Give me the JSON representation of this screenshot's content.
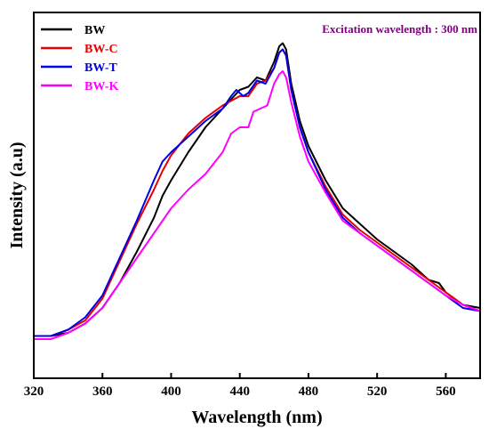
{
  "chart_data": {
    "type": "line",
    "xlabel": "Wavelength (nm)",
    "ylabel": "Intensity (a.u)",
    "xlim": [
      320,
      580
    ],
    "ylim": [
      0,
      1
    ],
    "xticks": [
      "320",
      "360",
      "400",
      "440",
      "480",
      "520",
      "560"
    ],
    "annotation": {
      "text": "Excitation wavelength : 300 nm",
      "color": "#800080"
    },
    "legend_position": "top-left",
    "series": [
      {
        "name": "BW",
        "color": "#000000",
        "x": [
          320,
          330,
          340,
          350,
          360,
          370,
          380,
          390,
          395,
          400,
          410,
          420,
          430,
          435,
          440,
          445,
          450,
          455,
          460,
          463,
          465,
          467,
          470,
          475,
          480,
          490,
          500,
          510,
          520,
          530,
          540,
          550,
          556,
          560,
          570,
          580
        ],
        "y": [
          0.07,
          0.07,
          0.08,
          0.11,
          0.16,
          0.24,
          0.34,
          0.45,
          0.52,
          0.57,
          0.66,
          0.74,
          0.8,
          0.83,
          0.86,
          0.87,
          0.9,
          0.89,
          0.95,
          1.0,
          1.01,
          0.99,
          0.88,
          0.76,
          0.68,
          0.57,
          0.48,
          0.43,
          0.38,
          0.34,
          0.3,
          0.25,
          0.24,
          0.21,
          0.17,
          0.16
        ]
      },
      {
        "name": "BW-C",
        "color": "#e60000",
        "x": [
          320,
          330,
          340,
          350,
          360,
          370,
          380,
          390,
          395,
          400,
          410,
          420,
          430,
          440,
          445,
          450,
          455,
          460,
          463,
          465,
          467,
          470,
          475,
          480,
          490,
          500,
          510,
          520,
          530,
          540,
          550,
          560,
          570,
          580
        ],
        "y": [
          0.07,
          0.07,
          0.09,
          0.12,
          0.19,
          0.31,
          0.43,
          0.54,
          0.6,
          0.65,
          0.72,
          0.77,
          0.81,
          0.84,
          0.84,
          0.88,
          0.89,
          0.93,
          0.98,
          0.99,
          0.97,
          0.86,
          0.74,
          0.66,
          0.55,
          0.46,
          0.41,
          0.37,
          0.33,
          0.29,
          0.25,
          0.21,
          0.17,
          0.15
        ]
      },
      {
        "name": "BW-T",
        "color": "#0000e6",
        "x": [
          320,
          330,
          340,
          350,
          360,
          370,
          380,
          390,
          395,
          400,
          410,
          420,
          430,
          435,
          438,
          442,
          445,
          450,
          455,
          460,
          463,
          465,
          467,
          470,
          475,
          480,
          490,
          500,
          510,
          520,
          530,
          540,
          550,
          560,
          570,
          580
        ],
        "y": [
          0.07,
          0.07,
          0.09,
          0.13,
          0.2,
          0.32,
          0.44,
          0.57,
          0.63,
          0.66,
          0.71,
          0.76,
          0.8,
          0.84,
          0.86,
          0.84,
          0.85,
          0.89,
          0.88,
          0.93,
          0.98,
          0.99,
          0.97,
          0.86,
          0.74,
          0.66,
          0.54,
          0.45,
          0.4,
          0.36,
          0.32,
          0.28,
          0.24,
          0.2,
          0.16,
          0.15
        ]
      },
      {
        "name": "BW-K",
        "color": "#ff00ff",
        "x": [
          320,
          330,
          340,
          350,
          360,
          370,
          380,
          390,
          400,
          410,
          420,
          430,
          435,
          440,
          445,
          448,
          452,
          456,
          460,
          463,
          465,
          467,
          470,
          475,
          480,
          490,
          500,
          510,
          520,
          530,
          540,
          550,
          560,
          570,
          580
        ],
        "y": [
          0.06,
          0.06,
          0.08,
          0.11,
          0.16,
          0.24,
          0.32,
          0.4,
          0.48,
          0.54,
          0.59,
          0.66,
          0.72,
          0.74,
          0.74,
          0.79,
          0.8,
          0.81,
          0.88,
          0.91,
          0.92,
          0.9,
          0.82,
          0.71,
          0.63,
          0.53,
          0.44,
          0.4,
          0.36,
          0.32,
          0.28,
          0.24,
          0.2,
          0.17,
          0.15
        ]
      }
    ]
  }
}
